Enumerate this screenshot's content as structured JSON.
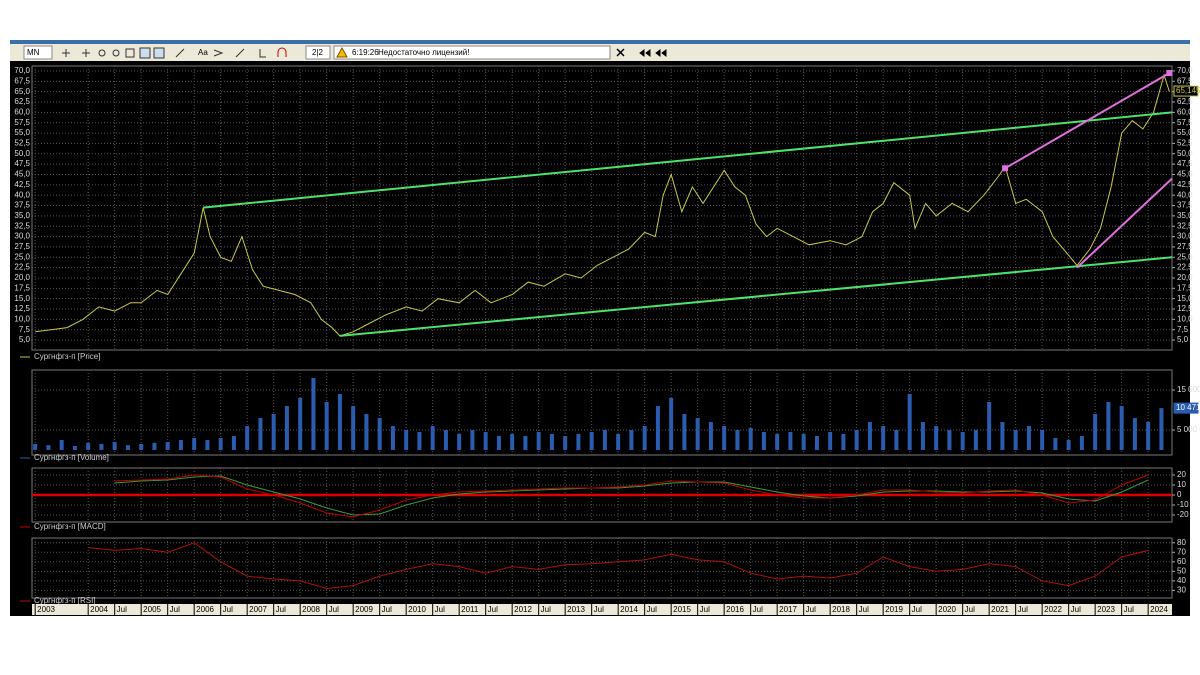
{
  "toolbar": {
    "period": "MN",
    "windows": "2|2",
    "time": "6:19:26",
    "message": "Недостаточно лицензий!"
  },
  "chart_data": [
    {
      "type": "line",
      "x": [
        2003.0,
        2003.3,
        2003.6,
        2003.9,
        2004.2,
        2004.5,
        2004.8,
        2005.0,
        2005.3,
        2005.5,
        2005.8,
        2006.0,
        2006.17,
        2006.3,
        2006.5,
        2006.7,
        2006.9,
        2007.1,
        2007.3,
        2007.6,
        2007.9,
        2008.2,
        2008.4,
        2008.6,
        2008.75,
        2009.0,
        2009.3,
        2009.6,
        2010.0,
        2010.3,
        2010.6,
        2011.0,
        2011.3,
        2011.6,
        2012.0,
        2012.3,
        2012.6,
        2013.0,
        2013.3,
        2013.6,
        2013.9,
        2014.2,
        2014.5,
        2014.7,
        2014.85,
        2015.0,
        2015.2,
        2015.4,
        2015.6,
        2015.9,
        2016.0,
        2016.2,
        2016.4,
        2016.6,
        2016.8,
        2017.0,
        2017.3,
        2017.6,
        2018.0,
        2018.3,
        2018.6,
        2018.8,
        2019.0,
        2019.2,
        2019.5,
        2019.6,
        2019.8,
        2020.0,
        2020.3,
        2020.6,
        2020.9,
        2021.2,
        2021.3,
        2021.5,
        2021.7,
        2022.0,
        2022.2,
        2022.4,
        2022.66,
        2022.9,
        2023.1,
        2023.3,
        2023.5,
        2023.7,
        2023.9,
        2024.1,
        2024.3,
        2024.4
      ],
      "series": [
        {
          "name": "Сургнфгз-п [Price]",
          "color": "#c8c84a",
          "values": [
            7,
            7.5,
            8,
            10,
            13,
            12,
            14,
            14,
            17,
            16,
            22,
            26,
            37,
            30,
            25,
            24,
            30,
            22,
            18,
            17,
            16,
            14,
            10,
            8,
            6,
            7,
            9,
            11,
            13,
            12,
            15,
            14,
            17,
            14,
            16,
            19,
            18,
            21,
            20,
            23,
            25,
            27,
            31,
            30,
            40,
            45,
            36,
            42,
            38,
            44,
            46,
            42,
            40,
            33,
            30,
            32,
            30,
            28,
            29,
            28,
            30,
            36,
            38,
            43,
            40,
            32,
            38,
            35,
            38,
            36,
            40,
            45,
            47,
            38,
            39,
            36,
            30,
            27,
            23,
            27,
            32,
            42,
            55,
            58,
            56,
            60,
            69,
            65
          ]
        }
      ],
      "trendlines": [
        {
          "color": "#4de36b",
          "x": [
            2006.17,
            2024.45
          ],
          "values": [
            37,
            60
          ]
        },
        {
          "color": "#4de36b",
          "x": [
            2008.75,
            2024.45
          ],
          "values": [
            6,
            25
          ]
        },
        {
          "color": "#e070e0",
          "x": [
            2021.3,
            2024.4
          ],
          "values": [
            46.5,
            69.5
          ],
          "endpoints": true
        },
        {
          "color": "#e070e0",
          "x": [
            2022.66,
            2024.45
          ],
          "values": [
            22.5,
            44
          ]
        }
      ],
      "last_value": {
        "value": 65.145,
        "label": "65,145"
      },
      "xlim": [
        2002.94,
        2024.45
      ],
      "xticks": [
        2003,
        2004,
        {
          "value": 2004.5,
          "label": "Jul"
        },
        2005,
        {
          "value": 2005.5,
          "label": "Jul"
        },
        2006,
        {
          "value": 2006.5,
          "label": "Jul"
        },
        2007,
        {
          "value": 2007.5,
          "label": "Jul"
        },
        2008,
        {
          "value": 2008.5,
          "label": "Jul"
        },
        2009,
        {
          "value": 2009.5,
          "label": "Jul"
        },
        2010,
        {
          "value": 2010.5,
          "label": "Jul"
        },
        2011,
        {
          "value": 2011.5,
          "label": "Jul"
        },
        2012,
        {
          "value": 2012.5,
          "label": "Jul"
        },
        2013,
        {
          "value": 2013.5,
          "label": "Jul"
        },
        2014,
        {
          "value": 2014.5,
          "label": "Jul"
        },
        2015,
        {
          "value": 2015.5,
          "label": "Jul"
        },
        2016,
        {
          "value": 2016.5,
          "label": "Jul"
        },
        2017,
        {
          "value": 2017.5,
          "label": "Jul"
        },
        2018,
        {
          "value": 2018.5,
          "label": "Jul"
        },
        2019,
        {
          "value": 2019.5,
          "label": "Jul"
        },
        2020,
        {
          "value": 2020.5,
          "label": "Jul"
        },
        2021,
        {
          "value": 2021.5,
          "label": "Jul"
        },
        2022,
        {
          "value": 2022.5,
          "label": "Jul"
        },
        2023,
        {
          "value": 2023.5,
          "label": "Jul"
        },
        2024
      ],
      "ylim": [
        2.6,
        71.2
      ],
      "yticks": [
        {
          "value": 5,
          "label": "5,0"
        },
        {
          "value": 7.5,
          "label": "7,5"
        },
        {
          "value": 10,
          "label": "10,0"
        },
        {
          "value": 12.5,
          "label": "12,5"
        },
        {
          "value": 15,
          "label": "15,0"
        },
        {
          "value": 17.5,
          "label": "17,5"
        },
        {
          "value": 20,
          "label": "20,0"
        },
        {
          "value": 22.5,
          "label": "22,5"
        },
        {
          "value": 25,
          "label": "25,0"
        },
        {
          "value": 27.5,
          "label": "27,5"
        },
        {
          "value": 30,
          "label": "30,0"
        },
        {
          "value": 32.5,
          "label": "32,5"
        },
        {
          "value": 35,
          "label": "35,0"
        },
        {
          "value": 37.5,
          "label": "37,5"
        },
        {
          "value": 40,
          "label": "40,0"
        },
        {
          "value": 42.5,
          "label": "42,5"
        },
        {
          "value": 45,
          "label": "45,0"
        },
        {
          "value": 47.5,
          "label": "47,5"
        },
        {
          "value": 50,
          "label": "50,0"
        },
        {
          "value": 52.5,
          "label": "52,5"
        },
        {
          "value": 55,
          "label": "55,0"
        },
        {
          "value": 57.5,
          "label": "57,5"
        },
        {
          "value": 60,
          "label": "60,0"
        },
        {
          "value": 62.5,
          "label": "62,5"
        },
        {
          "value": 65,
          "label": "65,0"
        },
        {
          "value": 67.5,
          "label": "67,5"
        },
        {
          "value": 70,
          "label": "70,0"
        }
      ],
      "left_axis": true,
      "grid": true
    },
    {
      "type": "bar",
      "x": [
        2003,
        2003.25,
        2003.5,
        2003.75,
        2004,
        2004.25,
        2004.5,
        2004.75,
        2005,
        2005.25,
        2005.5,
        2005.75,
        2006,
        2006.25,
        2006.5,
        2006.75,
        2007,
        2007.25,
        2007.5,
        2007.75,
        2008,
        2008.25,
        2008.5,
        2008.75,
        2009,
        2009.25,
        2009.5,
        2009.75,
        2010,
        2010.25,
        2010.5,
        2010.75,
        2011,
        2011.25,
        2011.5,
        2011.75,
        2012,
        2012.25,
        2012.5,
        2012.75,
        2013,
        2013.25,
        2013.5,
        2013.75,
        2014,
        2014.25,
        2014.5,
        2014.75,
        2015,
        2015.25,
        2015.5,
        2015.75,
        2016,
        2016.25,
        2016.5,
        2016.75,
        2017,
        2017.25,
        2017.5,
        2017.75,
        2018,
        2018.25,
        2018.5,
        2018.75,
        2019,
        2019.25,
        2019.5,
        2019.75,
        2020,
        2020.25,
        2020.5,
        2020.75,
        2021,
        2021.25,
        2021.5,
        2021.75,
        2022,
        2022.25,
        2022.5,
        2022.75,
        2023,
        2023.25,
        2023.5,
        2023.75,
        2024,
        2024.25
      ],
      "series": [
        {
          "name": "Сургнфгз-п [Volume]",
          "color": "#2a5db0",
          "values": [
            1500,
            1200,
            2500,
            1000,
            1800,
            1500,
            2000,
            1200,
            1500,
            1800,
            2000,
            2500,
            3000,
            2500,
            3000,
            3500,
            6000,
            8000,
            9000,
            11000,
            13000,
            18000,
            12000,
            14000,
            11000,
            9000,
            8000,
            6000,
            5000,
            4500,
            6000,
            5000,
            4000,
            5000,
            4500,
            3500,
            4000,
            3500,
            4500,
            4000,
            3500,
            4000,
            4500,
            5000,
            4000,
            5000,
            6000,
            11000,
            13000,
            9000,
            8000,
            7000,
            6000,
            5000,
            5500,
            4500,
            4000,
            4500,
            4000,
            3500,
            4500,
            4000,
            5000,
            7000,
            6000,
            5000,
            14000,
            7000,
            6000,
            5000,
            4500,
            5000,
            12000,
            7000,
            5000,
            6000,
            5000,
            3000,
            2500,
            3500,
            9000,
            12000,
            11000,
            8000,
            7000,
            10471
          ]
        }
      ],
      "last_value": {
        "value": 10471,
        "label": "10 471"
      },
      "ylim": [
        -1250,
        20000
      ],
      "yticks": [
        {
          "value": 5000,
          "label": "5 000 0"
        },
        {
          "value": 15000,
          "label": "15 000"
        }
      ],
      "grid": true
    },
    {
      "type": "line",
      "x": [
        2004.5,
        2005,
        2005.5,
        2006,
        2006.5,
        2007,
        2007.5,
        2008,
        2008.5,
        2009,
        2009.5,
        2010,
        2010.5,
        2011,
        2011.5,
        2012,
        2012.5,
        2013,
        2013.5,
        2014,
        2014.5,
        2015,
        2015.5,
        2016,
        2016.5,
        2017,
        2017.5,
        2018,
        2018.5,
        2019,
        2019.5,
        2020,
        2020.5,
        2021,
        2021.5,
        2022,
        2022.5,
        2023,
        2023.5,
        2024
      ],
      "series": [
        {
          "color": "#3a9a3a",
          "values": [
            12,
            14,
            15,
            18,
            19,
            10,
            3,
            -4,
            -13,
            -20,
            -19,
            -10,
            -3,
            1,
            3,
            4,
            5,
            6,
            7,
            7,
            9,
            12,
            13,
            13,
            8,
            3,
            -1,
            -3,
            -1,
            3,
            4,
            4,
            3,
            3,
            4,
            2,
            -4,
            -6,
            3,
            15
          ]
        },
        {
          "name": "Сургнфгз-п [MACD]",
          "color": "#c00000",
          "values": [
            14,
            15,
            16,
            20,
            18,
            6,
            0,
            -8,
            -18,
            -22,
            -15,
            -5,
            0,
            3,
            4,
            5,
            6,
            7,
            7,
            8,
            10,
            14,
            13,
            12,
            5,
            0,
            -3,
            -3,
            0,
            5,
            5,
            3,
            2,
            4,
            5,
            0,
            -8,
            -5,
            10,
            20
          ]
        }
      ],
      "ylim": [
        -27,
        27
      ],
      "yticks": [
        -20,
        -10,
        0,
        10,
        20
      ],
      "zero_line": "#e00000",
      "grid": true
    },
    {
      "type": "line",
      "x": [
        2004,
        2004.5,
        2005,
        2005.5,
        2006,
        2006.5,
        2007,
        2007.5,
        2008,
        2008.5,
        2009,
        2009.5,
        2010,
        2010.5,
        2011,
        2011.5,
        2012,
        2012.5,
        2013,
        2013.5,
        2014,
        2014.5,
        2015,
        2015.5,
        2016,
        2016.5,
        2017,
        2017.5,
        2018,
        2018.5,
        2019,
        2019.5,
        2020,
        2020.5,
        2021,
        2021.5,
        2022,
        2022.5,
        2023,
        2023.5,
        2024
      ],
      "series": [
        {
          "name": "Сургнфгз-п [RSI]",
          "color": "#b01010",
          "values": [
            75,
            72,
            74,
            70,
            80,
            60,
            45,
            42,
            40,
            32,
            35,
            45,
            52,
            58,
            55,
            48,
            55,
            52,
            57,
            58,
            60,
            62,
            68,
            62,
            60,
            48,
            42,
            45,
            43,
            48,
            65,
            55,
            50,
            52,
            58,
            55,
            40,
            35,
            45,
            65,
            72
          ]
        }
      ],
      "ylim": [
        22,
        85
      ],
      "yticks": [
        30,
        40,
        50,
        60,
        70,
        80
      ],
      "grid": true,
      "time_axis": true
    }
  ]
}
